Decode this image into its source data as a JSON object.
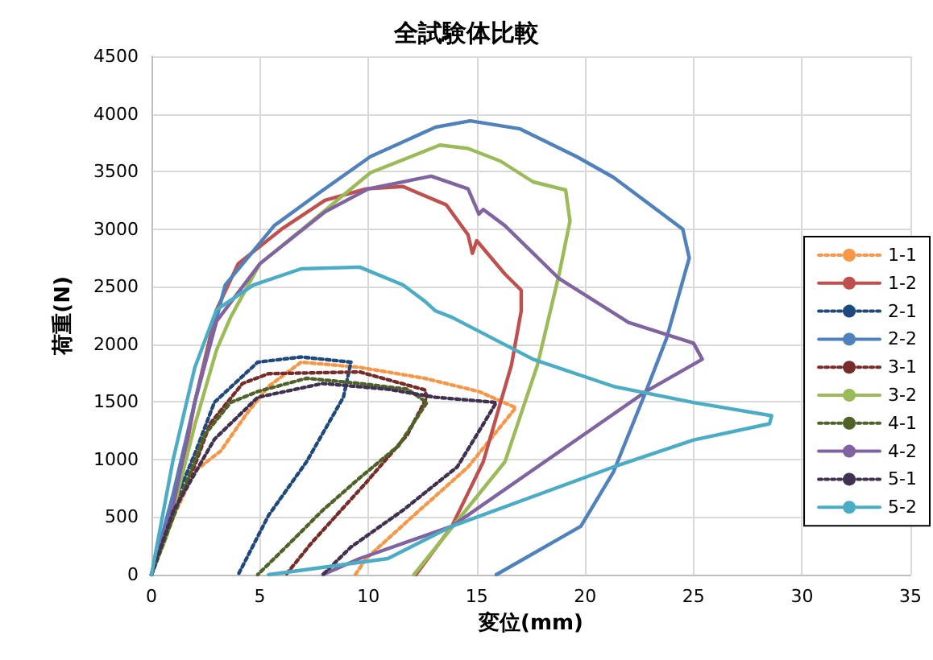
{
  "chart_data": {
    "type": "line",
    "title": "全試験体比較",
    "xlabel": "変位(mm)",
    "ylabel": "荷重(N)",
    "xlim": [
      0,
      35
    ],
    "xticks": [
      0,
      5,
      10,
      15,
      20,
      25,
      30,
      35
    ],
    "ylim": [
      0,
      4500
    ],
    "yticks": [
      0,
      500,
      1000,
      1500,
      2000,
      2500,
      3000,
      3500,
      4000,
      4500
    ],
    "grid": true,
    "legend": "right",
    "marker": "none",
    "series": [
      {
        "name": "1-1",
        "color": "#f79646",
        "line_style": "dotted",
        "x": [
          0,
          1,
          2,
          3.2,
          4.4,
          5.4,
          6.9,
          9.6,
          12.6,
          15.1,
          16.8,
          14.6,
          12.1,
          9.9,
          9.4
        ],
        "values": [
          0,
          500,
          900,
          1075,
          1400,
          1635,
          1845,
          1800,
          1705,
          1590,
          1450,
          935,
          515,
          140,
          0
        ]
      },
      {
        "name": "1-2",
        "color": "#c0504d",
        "line_style": "solid",
        "x": [
          0,
          1,
          2,
          3,
          4,
          6,
          8,
          9.9,
          11.6,
          13.6,
          14.6,
          14.8,
          15,
          16.3,
          17.05,
          17.05,
          16.6,
          15.3,
          13.85,
          12.2
        ],
        "values": [
          0,
          500,
          1500,
          2300,
          2700,
          3000,
          3250,
          3350,
          3370,
          3210,
          2950,
          2790,
          2900,
          2610,
          2470,
          2290,
          1820,
          980,
          420,
          0
        ]
      },
      {
        "name": "2-1",
        "color": "#1f497d",
        "line_style": "dotted",
        "x": [
          0,
          1,
          2,
          2.9,
          4.9,
          6.9,
          9.2,
          8.85,
          7.15,
          5.4,
          4.0
        ],
        "values": [
          0,
          600,
          1050,
          1495,
          1845,
          1890,
          1845,
          1540,
          980,
          515,
          0
        ]
      },
      {
        "name": "2-2",
        "color": "#4f81bd",
        "line_style": "solid",
        "x": [
          0,
          1,
          2,
          3.4,
          5.66,
          7.7,
          10.1,
          13.1,
          14.7,
          17.0,
          19.6,
          21.3,
          24.5,
          24.8,
          23.75,
          22.8,
          21.3,
          19.8,
          15.9
        ],
        "values": [
          0,
          700,
          1500,
          2515,
          3030,
          3310,
          3630,
          3885,
          3940,
          3870,
          3630,
          3450,
          3000,
          2750,
          2050,
          1590,
          890,
          420,
          0
        ]
      },
      {
        "name": "3-1",
        "color": "#772c2a",
        "line_style": "dotted",
        "x": [
          0,
          1,
          2,
          2.7,
          4.2,
          5.4,
          9.6,
          12.6,
          12.7,
          11.8,
          9.9,
          7.4,
          6.2
        ],
        "values": [
          0,
          550,
          950,
          1310,
          1660,
          1745,
          1760,
          1605,
          1540,
          1215,
          800,
          280,
          0
        ]
      },
      {
        "name": "3-2",
        "color": "#9bbb59",
        "line_style": "solid",
        "x": [
          0,
          0.7,
          2,
          3,
          3.65,
          5,
          7.15,
          10.1,
          13.3,
          14.6,
          16.1,
          17.6,
          19.1,
          19.3,
          18.8,
          17.8,
          16.3,
          12.1
        ],
        "values": [
          0,
          335,
          1300,
          1950,
          2235,
          2700,
          3030,
          3490,
          3730,
          3700,
          3590,
          3410,
          3340,
          3070,
          2610,
          1820,
          980,
          0
        ]
      },
      {
        "name": "4-1",
        "color": "#4f6228",
        "line_style": "dotted",
        "x": [
          0,
          1,
          2.45,
          3.65,
          4.9,
          7.15,
          9.6,
          11.8,
          12.7,
          11.4,
          9.6,
          7.9,
          6.2,
          4.9
        ],
        "values": [
          0,
          500,
          1215,
          1495,
          1590,
          1705,
          1660,
          1610,
          1495,
          1120,
          840,
          560,
          240,
          0
        ]
      },
      {
        "name": "4-2",
        "color": "#8064a2",
        "line_style": "solid",
        "x": [
          0,
          1,
          2,
          3,
          5,
          8,
          10,
          12.9,
          14.6,
          15.1,
          15.3,
          16.3,
          18.8,
          22.0,
          25.0,
          25.4,
          22.8,
          13.85,
          9.6,
          7.9
        ],
        "values": [
          0,
          600,
          1500,
          2200,
          2700,
          3150,
          3350,
          3460,
          3350,
          3130,
          3170,
          3030,
          2570,
          2190,
          2010,
          1870,
          1590,
          420,
          140,
          0
        ]
      },
      {
        "name": "5-1",
        "color": "#403151",
        "line_style": "dotted",
        "x": [
          0,
          1,
          2.9,
          4.9,
          7.9,
          10.9,
          13.1,
          15.9,
          15.6,
          14.1,
          11.6,
          9.2,
          7.9
        ],
        "values": [
          0,
          550,
          1175,
          1540,
          1660,
          1610,
          1540,
          1495,
          1400,
          935,
          560,
          240,
          0
        ]
      },
      {
        "name": "5-2",
        "color": "#4bacc6",
        "line_style": "solid",
        "x": [
          0,
          1,
          2,
          3,
          4.7,
          6.9,
          9.6,
          11.6,
          12.6,
          13.1,
          13.85,
          17.6,
          21.3,
          25.0,
          28.6,
          28.5,
          25.0,
          21.3,
          13.85,
          10.9,
          5.4
        ],
        "values": [
          0,
          1000,
          1800,
          2300,
          2515,
          2655,
          2670,
          2515,
          2375,
          2290,
          2235,
          1870,
          1635,
          1495,
          1380,
          1310,
          1170,
          935,
          420,
          140,
          0
        ]
      }
    ]
  }
}
